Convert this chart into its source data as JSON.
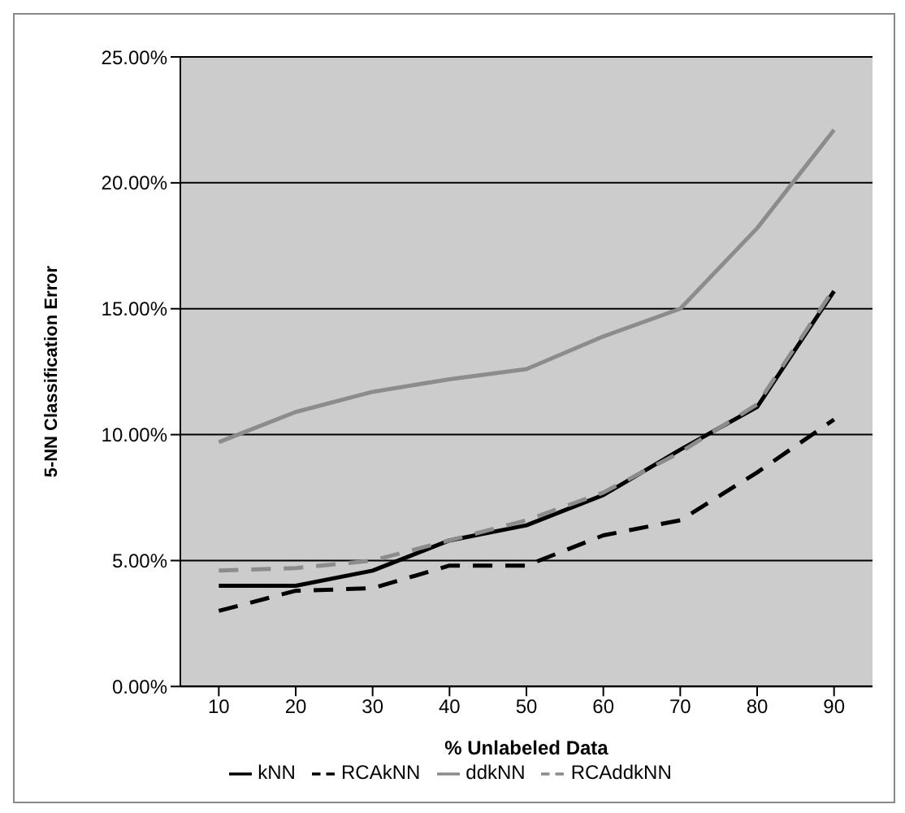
{
  "chart_data": {
    "type": "line",
    "xlabel": "% Unlabeled Data",
    "ylabel": "5-NN Classification Error",
    "categories": [
      "10",
      "20",
      "30",
      "40",
      "50",
      "60",
      "70",
      "80",
      "90"
    ],
    "series": [
      {
        "name": "kNN",
        "color": "#000000",
        "line_style": "solid",
        "values": [
          4.0,
          4.0,
          4.6,
          5.8,
          6.4,
          7.6,
          9.4,
          11.1,
          15.7
        ]
      },
      {
        "name": "RCAkNN",
        "color": "#000000",
        "line_style": "dashed",
        "values": [
          3.0,
          3.8,
          3.9,
          4.8,
          4.8,
          6.0,
          6.6,
          8.5,
          10.6
        ]
      },
      {
        "name": "ddkNN",
        "color": "#8c8c8c",
        "line_style": "solid",
        "values": [
          9.7,
          10.9,
          11.7,
          12.2,
          12.6,
          13.9,
          15.0,
          18.2,
          22.1
        ]
      },
      {
        "name": "RCAddkNN",
        "color": "#8c8c8c",
        "line_style": "dashed",
        "values": [
          4.6,
          4.7,
          5.0,
          5.8,
          6.6,
          7.7,
          9.3,
          11.2,
          15.8
        ]
      }
    ],
    "ylim": [
      0,
      25
    ],
    "yticks": [
      {
        "value": 0,
        "label": "0.00%"
      },
      {
        "value": 5,
        "label": "5.00%"
      },
      {
        "value": 10,
        "label": "10.00%"
      },
      {
        "value": 15,
        "label": "15.00%"
      },
      {
        "value": 20,
        "label": "20.00%"
      },
      {
        "value": 25,
        "label": "25.00%"
      }
    ],
    "grid": "y",
    "legend": "bottom",
    "marker": "none"
  }
}
